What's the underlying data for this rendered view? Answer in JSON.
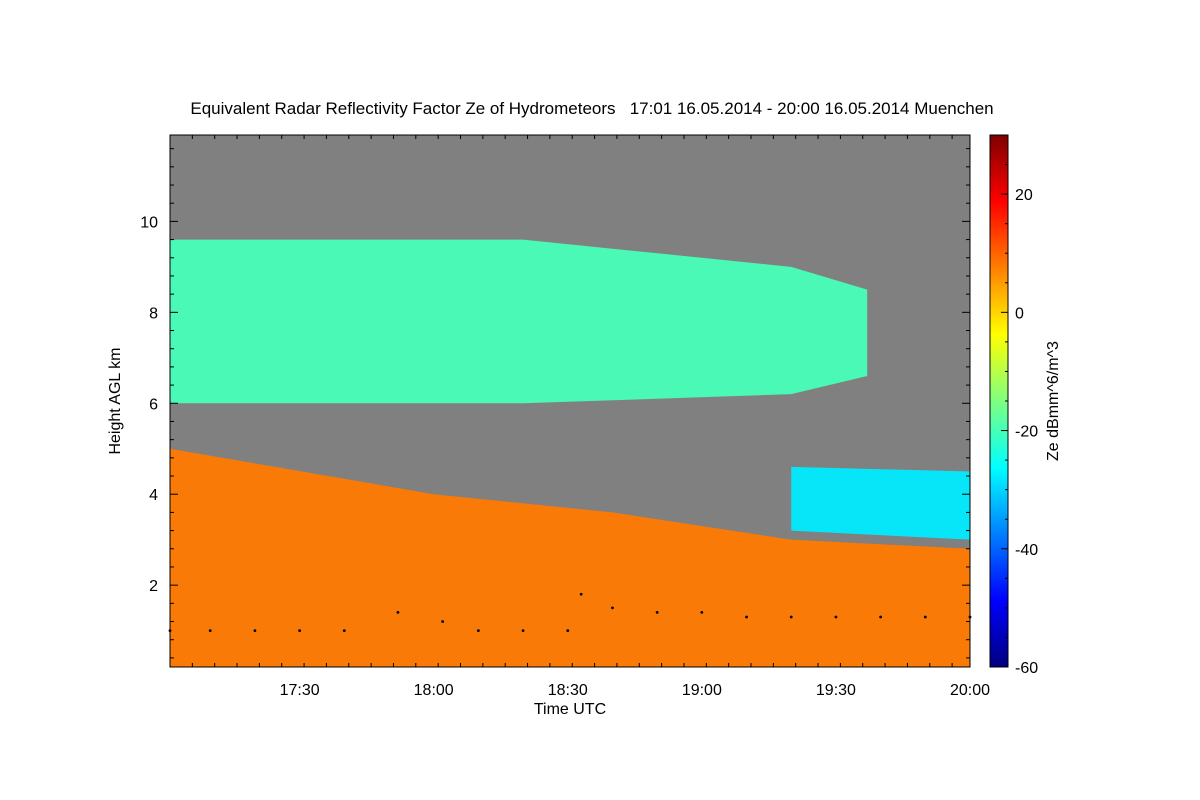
{
  "chart_data": {
    "type": "heatmap",
    "title": "Equivalent Radar Reflectivity Factor Ze of Hydrometeors   17:01 16.05.2014 - 20:00 16.05.2014 Muenchen",
    "xlabel": "Time UTC",
    "ylabel": "Height AGL km",
    "colorbar_label": "Ze dBmm^6/m^3",
    "x_range_minutes_utc": [
      1021,
      1200
    ],
    "y_range_km": [
      0.2,
      11.9
    ],
    "clim": [
      -60,
      30
    ],
    "x_ticks": [
      {
        "minute": 1050,
        "label": "17:30"
      },
      {
        "minute": 1080,
        "label": "18:00"
      },
      {
        "minute": 1110,
        "label": "18:30"
      },
      {
        "minute": 1140,
        "label": "19:00"
      },
      {
        "minute": 1170,
        "label": "19:30"
      },
      {
        "minute": 1200,
        "label": "20:00"
      }
    ],
    "y_ticks": [
      {
        "value": 2,
        "label": "2"
      },
      {
        "value": 4,
        "label": "4"
      },
      {
        "value": 6,
        "label": "6"
      },
      {
        "value": 8,
        "label": "8"
      },
      {
        "value": 10,
        "label": "10"
      }
    ],
    "colorbar_ticks": [
      {
        "value": 20,
        "label": "20"
      },
      {
        "value": 0,
        "label": "0"
      },
      {
        "value": -20,
        "label": "-20"
      },
      {
        "value": -40,
        "label": "-40"
      },
      {
        "value": -60,
        "label": "-60"
      }
    ],
    "colormap": [
      "#00007f",
      "#0000ff",
      "#007fff",
      "#00ffff",
      "#7fff7f",
      "#ffff00",
      "#ff7f00",
      "#ff0000",
      "#7f0000"
    ],
    "no_signal_color": "#808080",
    "cloud_layers": [
      {
        "name": "upper",
        "time": [
          1021,
          1100,
          1160,
          1177
        ],
        "base_km": [
          6.0,
          6.0,
          6.2,
          6.6
        ],
        "top_km": [
          9.6,
          9.6,
          9.0,
          8.5
        ],
        "ze_dbz": -20
      },
      {
        "name": "mid",
        "time": [
          1160,
          1200
        ],
        "base_km": [
          3.2,
          3.0
        ],
        "top_km": [
          4.6,
          4.5
        ],
        "ze_dbz": -28
      },
      {
        "name": "lower",
        "time": [
          1021,
          1080,
          1120,
          1160,
          1200
        ],
        "base_km": [
          0.2,
          0.2,
          0.2,
          0.2,
          0.2
        ],
        "top_km": [
          5.0,
          4.0,
          3.6,
          3.0,
          2.8
        ],
        "ze_dbz": 8
      }
    ],
    "cloud_base_points_km": [
      [
        1021,
        1.0
      ],
      [
        1030,
        1.0
      ],
      [
        1040,
        1.0
      ],
      [
        1050,
        1.0
      ],
      [
        1060,
        1.0
      ],
      [
        1072,
        1.4
      ],
      [
        1082,
        1.2
      ],
      [
        1090,
        1.0
      ],
      [
        1100,
        1.0
      ],
      [
        1110,
        1.0
      ],
      [
        1113,
        1.8
      ],
      [
        1120,
        1.5
      ],
      [
        1130,
        1.4
      ],
      [
        1140,
        1.4
      ],
      [
        1150,
        1.3
      ],
      [
        1160,
        1.3
      ],
      [
        1170,
        1.3
      ],
      [
        1180,
        1.3
      ],
      [
        1190,
        1.3
      ],
      [
        1200,
        1.3
      ]
    ]
  }
}
